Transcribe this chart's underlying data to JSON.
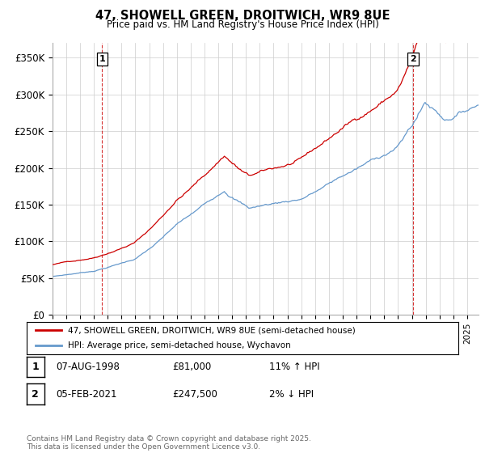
{
  "title_line1": "47, SHOWELL GREEN, DROITWICH, WR9 8UE",
  "title_line2": "Price paid vs. HM Land Registry's House Price Index (HPI)",
  "ylim": [
    0,
    370000
  ],
  "yticks": [
    0,
    50000,
    100000,
    150000,
    200000,
    250000,
    300000,
    350000
  ],
  "ytick_labels": [
    "£0",
    "£50K",
    "£100K",
    "£150K",
    "£200K",
    "£250K",
    "£300K",
    "£350K"
  ],
  "xlim_start": 1995.0,
  "xlim_end": 2025.8,
  "sale1_date": 1998.6,
  "sale1_price": 81000,
  "sale1_label": "1",
  "sale2_date": 2021.08,
  "sale2_price": 247500,
  "sale2_label": "2",
  "legend_line1": "47, SHOWELL GREEN, DROITWICH, WR9 8UE (semi-detached house)",
  "legend_line2": "HPI: Average price, semi-detached house, Wychavon",
  "table_row1": [
    "1",
    "07-AUG-1998",
    "£81,000",
    "11% ↑ HPI"
  ],
  "table_row2": [
    "2",
    "05-FEB-2021",
    "£247,500",
    "2% ↓ HPI"
  ],
  "footnote": "Contains HM Land Registry data © Crown copyright and database right 2025.\nThis data is licensed under the Open Government Licence v3.0.",
  "color_red": "#cc0000",
  "color_blue": "#6699cc",
  "color_grid": "#cccccc",
  "background_color": "#ffffff"
}
